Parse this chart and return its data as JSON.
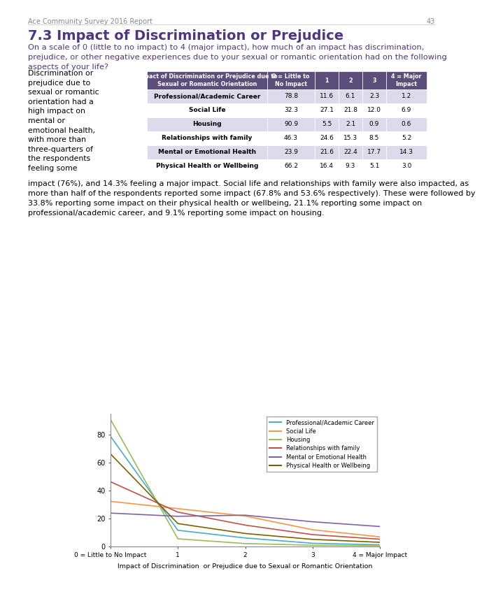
{
  "page_header": "Ace Community Survey 2016 Report",
  "page_number": "43",
  "section_title": "7.3 Impact of Discrimination or Prejudice",
  "intro_text": "On a scale of 0 (little to no impact) to 4 (major impact), how much of an impact has discrimination,\nprejudice, or other negative experiences due to your sexual or romantic orientation had on the following\naspects of your life?",
  "left_text": "Discrimination or\nprejudice due to\nsexual or romantic\norientation had a\nhigh impact on\nmental or\nemotional health,\nwith more than\nthree-quarters of\nthe respondents\nfeeling some",
  "body_text": "impact (76%), and 14.3% feeling a major impact. Social life and relationships with family were also impacted, as\nmore than half of the respondents reported some impact (67.8% and 53.6% respectively). These were followed by\n33.8% reporting some impact on their physical health or wellbeing, 21.1% reporting some impact on\nprofessional/academic career, and 9.1% reporting some impact on housing.",
  "table": {
    "headers": [
      "Impact of Discrimination or Prejudice due to\nSexual or Romantic Orientation",
      "0 = Little to\nNo Impact",
      "1",
      "2",
      "3",
      "4 = Major\nImpact"
    ],
    "rows": [
      [
        "Professional/Academic Career",
        "78.8",
        "11.6",
        "6.1",
        "2.3",
        "1.2"
      ],
      [
        "Social Life",
        "32.3",
        "27.1",
        "21.8",
        "12.0",
        "6.9"
      ],
      [
        "Housing",
        "90.9",
        "5.5",
        "2.1",
        "0.9",
        "0.6"
      ],
      [
        "Relationships with family",
        "46.3",
        "24.6",
        "15.3",
        "8.5",
        "5.2"
      ],
      [
        "Mental or Emotional Health",
        "23.9",
        "21.6",
        "22.4",
        "17.7",
        "14.3"
      ],
      [
        "Physical Health or Wellbeing",
        "66.2",
        "16.4",
        "9.3",
        "5.1",
        "3.0"
      ]
    ],
    "header_bg": "#5C4E7A",
    "header_fg": "#FFFFFF",
    "row_bg_shaded": "#DDDAEB",
    "row_bg_white": "#FFFFFF",
    "shaded_rows": [
      0,
      2,
      4
    ]
  },
  "chart": {
    "x": [
      0,
      1,
      2,
      3,
      4
    ],
    "series": [
      {
        "label": "Professional/Academic Career",
        "color": "#4BACC6",
        "values": [
          78.8,
          11.6,
          6.1,
          2.3,
          1.2
        ]
      },
      {
        "label": "Social Life",
        "color": "#F79646",
        "values": [
          32.3,
          27.1,
          21.8,
          12.0,
          6.9
        ]
      },
      {
        "label": "Housing",
        "color": "#9BBB59",
        "values": [
          90.9,
          5.5,
          2.1,
          0.9,
          0.6
        ]
      },
      {
        "label": "Relationships with family",
        "color": "#C0504D",
        "values": [
          46.3,
          24.6,
          15.3,
          8.5,
          5.2
        ]
      },
      {
        "label": "Mental or Emotional Health",
        "color": "#8064A2",
        "values": [
          23.9,
          21.6,
          22.4,
          17.7,
          14.3
        ]
      },
      {
        "label": "Physical Health or Wellbeing",
        "color": "#7F6000",
        "values": [
          66.2,
          16.4,
          9.3,
          5.1,
          3.0
        ]
      }
    ],
    "xlabel": "Impact of Discrimination  or Prejudice due to Sexual or Romantic Orientation",
    "xtick_labels": [
      "0 = Little to No Impact",
      "1",
      "2",
      "3",
      "4 = Major Impact"
    ],
    "ylim": [
      0,
      95
    ],
    "yticks": [
      0,
      20,
      40,
      60,
      80
    ]
  },
  "bg_color": "#FFFFFF",
  "title_color": "#4F3681",
  "intro_color": "#4F3681"
}
